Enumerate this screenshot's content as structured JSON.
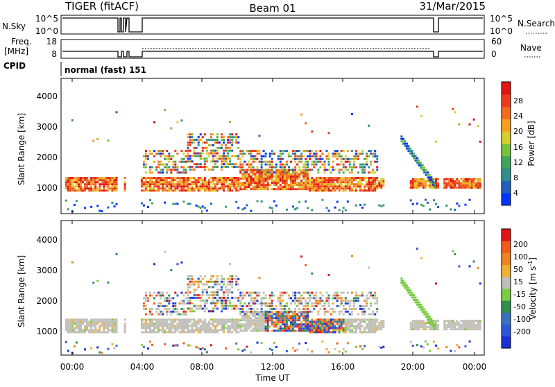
{
  "header": {
    "radar": "TIGER (fitACF)",
    "beam": "Beam 01",
    "date": "31/Mar/2015"
  },
  "param_panel": {
    "nsky_label": "N.Sky",
    "nsky_ticks": [
      "10^5",
      "10^0"
    ],
    "nsearch_label": "N.Search",
    "nsearch_ticks": [
      "10^5",
      "10^0"
    ],
    "freq_label": "Freq.",
    "freq_unit": "[MHz]",
    "freq_ticks": [
      "18",
      "8"
    ],
    "nave_label": "Nave",
    "nave_ticks": [
      "60",
      "0"
    ],
    "cpid_label": "CPID",
    "cpid_value": "normal (fast) 151"
  },
  "chart_data": [
    {
      "type": "heatmap",
      "title": "",
      "parameter": "Power",
      "ylabel": "Slant Range [km]",
      "xlabel": "",
      "ylim": [
        0,
        4500
      ],
      "yticks": [
        "1000",
        "2000",
        "3000",
        "4000"
      ],
      "colorbar": {
        "label": "Power [dB]",
        "ticks": [
          "28",
          "24",
          "20",
          "16",
          "12",
          "8",
          "4"
        ],
        "colors": [
          "#0033ff",
          "#1f5fbf",
          "#2f8f8f",
          "#3fa45a",
          "#77c23a",
          "#d8d02a",
          "#f7a020",
          "#f46a1e",
          "#ee3a1a",
          "#e21414"
        ]
      },
      "grid": false
    },
    {
      "type": "heatmap",
      "title": "",
      "parameter": "Velocity",
      "ylabel": "Slant Range [km]",
      "xlabel": "Time UT",
      "ylim": [
        0,
        4500
      ],
      "yticks": [
        "1000",
        "2000",
        "3000",
        "4000"
      ],
      "xticks": [
        "00:00",
        "04:00",
        "08:00",
        "12:00",
        "16:00",
        "20:00",
        "00:00"
      ],
      "colorbar": {
        "label": "Velocity [m s",
        "label_sup": "-1",
        "label_end": "]",
        "ticks": [
          "200",
          "100",
          "50",
          "15",
          "-15",
          "-50",
          "-100",
          "-200"
        ],
        "colors": [
          "#1a2fd8",
          "#2f55d8",
          "#3a70c0",
          "#2f8f4f",
          "#7acc40",
          "#c0c0b8",
          "#f0b030",
          "#f08420",
          "#f25a1c",
          "#e21414"
        ]
      },
      "grid": false
    }
  ]
}
